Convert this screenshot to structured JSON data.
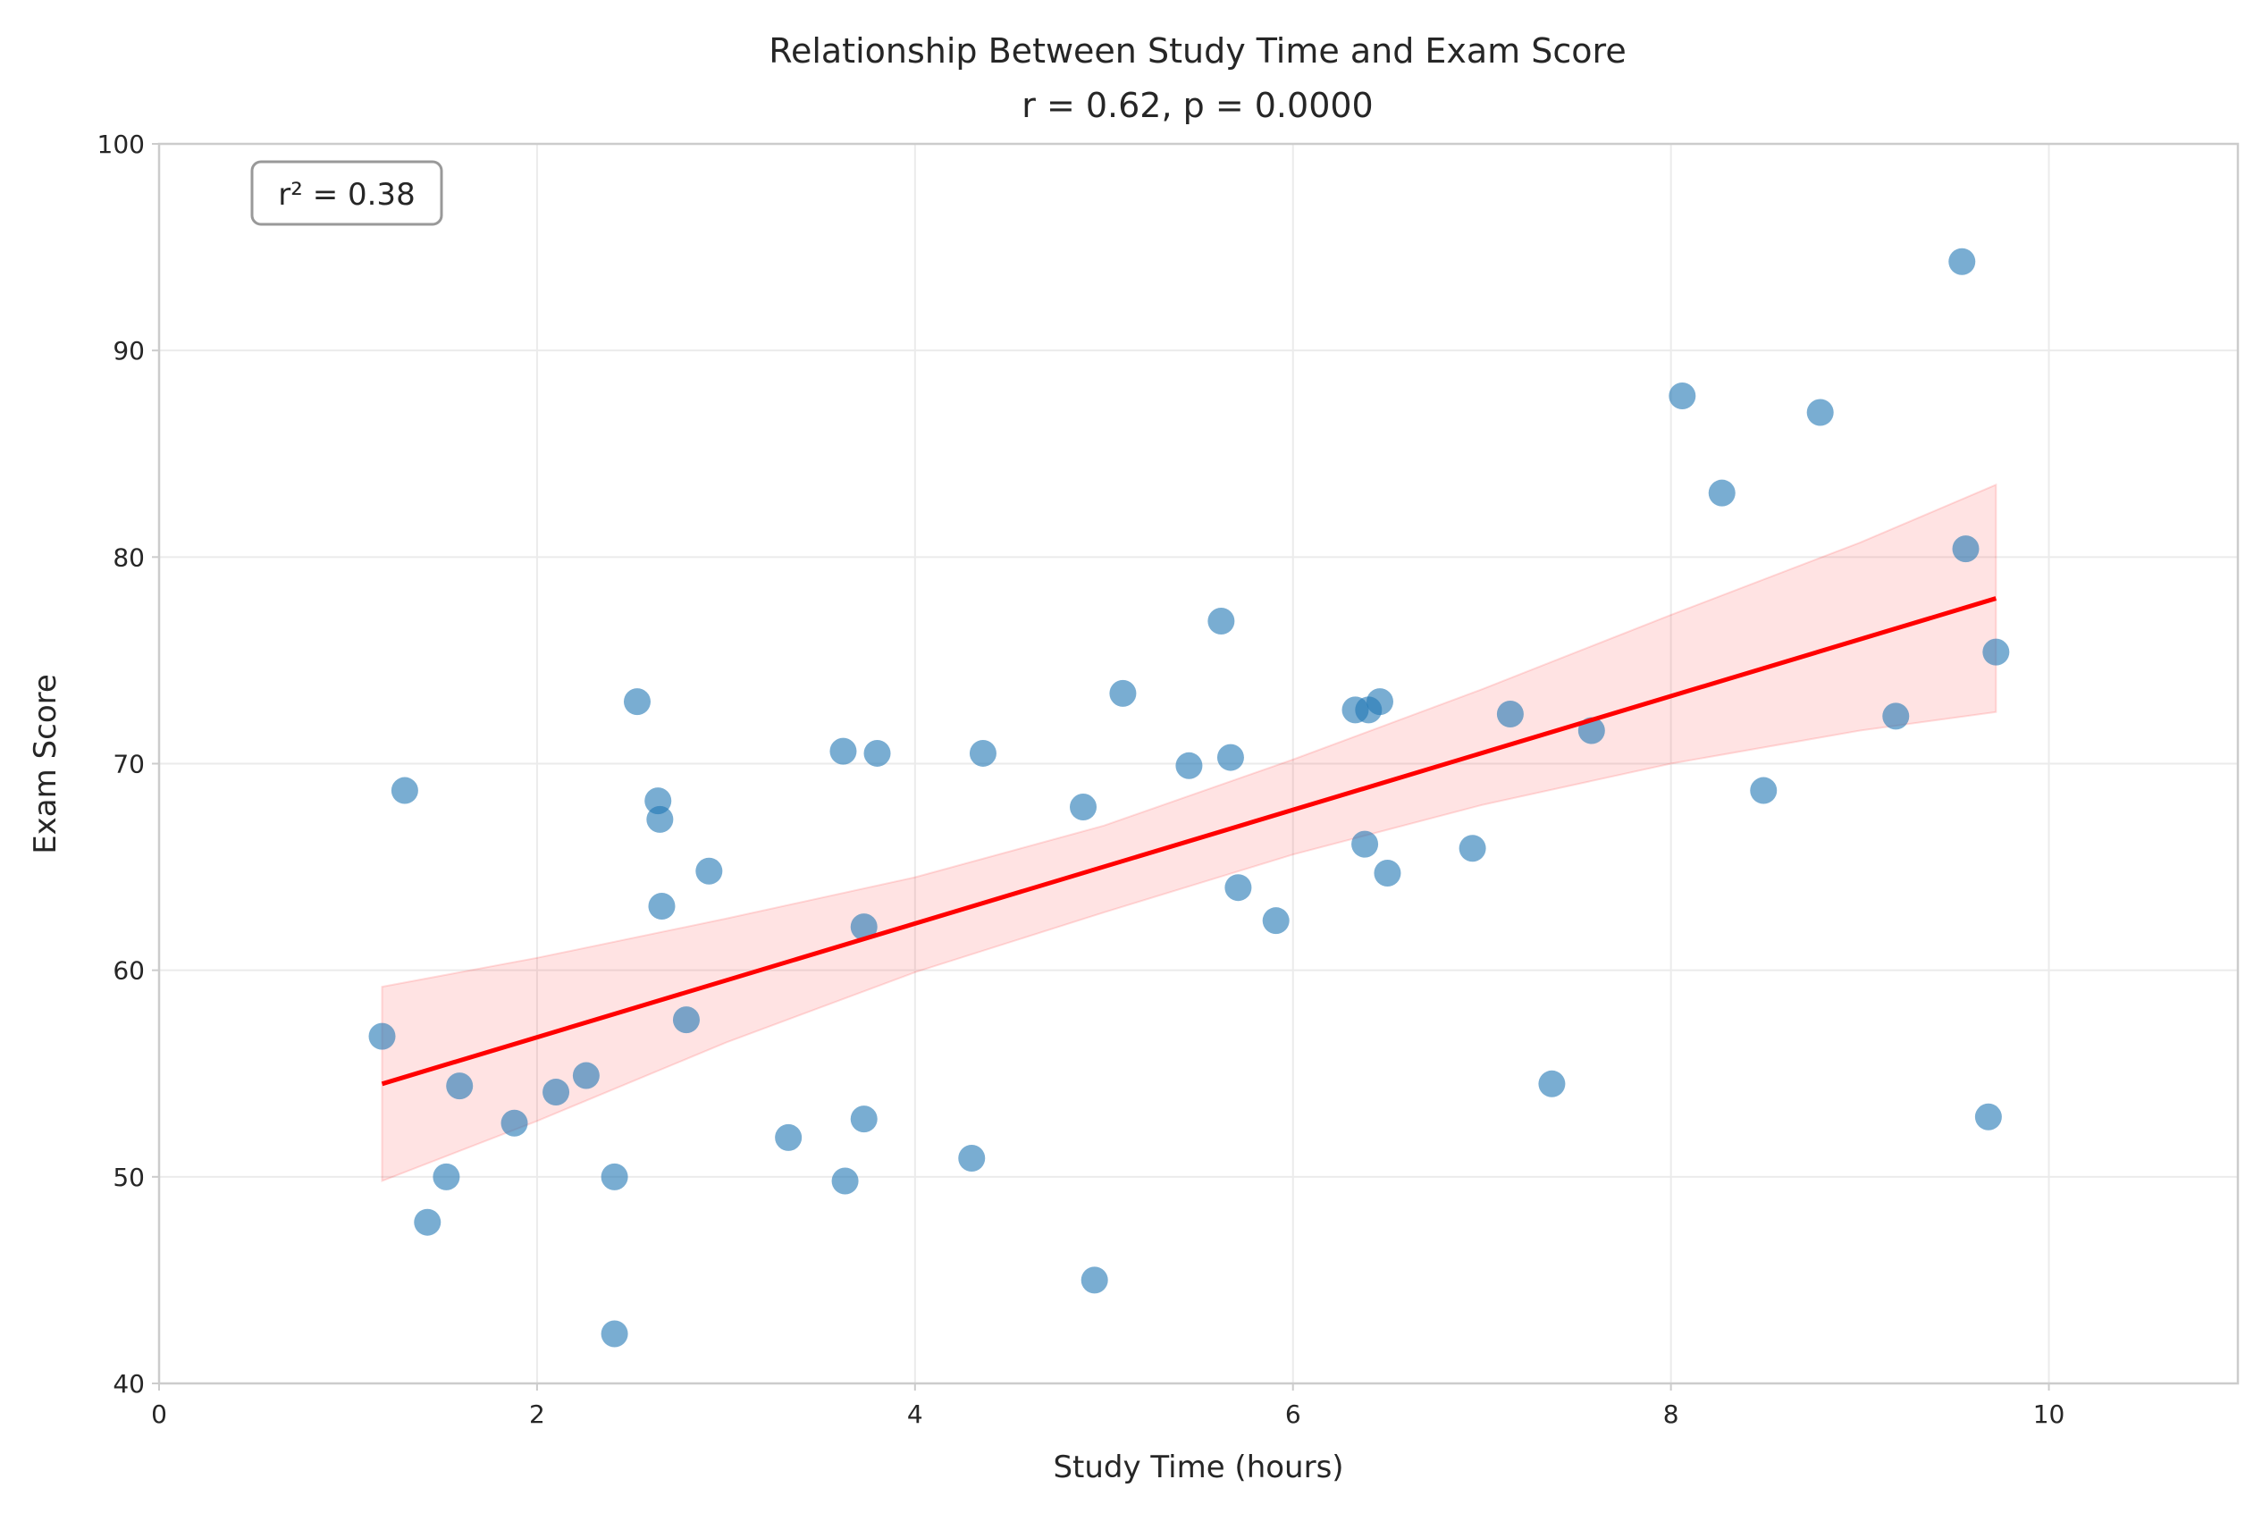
{
  "chart_data": {
    "type": "scatter",
    "title_line1": "Relationship Between Study Time and Exam Score",
    "title_line2": "r = 0.62, p = 0.0000",
    "xlabel": "Study Time (hours)",
    "ylabel": "Exam Score",
    "xlim": [
      0,
      11
    ],
    "ylim": [
      40,
      100
    ],
    "xticks": [
      0,
      2,
      4,
      6,
      8,
      10
    ],
    "yticks": [
      40,
      50,
      60,
      70,
      80,
      90,
      100
    ],
    "grid": true,
    "annotation": "r² = 0.38",
    "colors": {
      "points": "#1f77b4",
      "fit": "#ff0000",
      "band": "#ff0000"
    },
    "points": [
      {
        "x": 1.18,
        "y": 56.8
      },
      {
        "x": 1.3,
        "y": 68.7
      },
      {
        "x": 1.42,
        "y": 47.8
      },
      {
        "x": 1.52,
        "y": 50.0
      },
      {
        "x": 1.59,
        "y": 54.4
      },
      {
        "x": 1.88,
        "y": 52.6
      },
      {
        "x": 2.1,
        "y": 54.1
      },
      {
        "x": 2.26,
        "y": 54.9
      },
      {
        "x": 2.41,
        "y": 50.0
      },
      {
        "x": 2.41,
        "y": 42.4
      },
      {
        "x": 2.53,
        "y": 73.0
      },
      {
        "x": 2.64,
        "y": 68.2
      },
      {
        "x": 2.65,
        "y": 67.3
      },
      {
        "x": 2.66,
        "y": 63.1
      },
      {
        "x": 2.79,
        "y": 57.6
      },
      {
        "x": 2.91,
        "y": 64.8
      },
      {
        "x": 3.33,
        "y": 51.9
      },
      {
        "x": 3.62,
        "y": 70.6
      },
      {
        "x": 3.63,
        "y": 49.8
      },
      {
        "x": 3.73,
        "y": 62.1
      },
      {
        "x": 3.73,
        "y": 52.8
      },
      {
        "x": 3.8,
        "y": 70.5
      },
      {
        "x": 4.3,
        "y": 50.9
      },
      {
        "x": 4.36,
        "y": 70.5
      },
      {
        "x": 4.89,
        "y": 67.9
      },
      {
        "x": 4.95,
        "y": 45.0
      },
      {
        "x": 5.1,
        "y": 73.4
      },
      {
        "x": 5.45,
        "y": 69.9
      },
      {
        "x": 5.62,
        "y": 76.9
      },
      {
        "x": 5.67,
        "y": 70.3
      },
      {
        "x": 5.71,
        "y": 64.0
      },
      {
        "x": 5.91,
        "y": 62.4
      },
      {
        "x": 6.33,
        "y": 72.6
      },
      {
        "x": 6.38,
        "y": 66.1
      },
      {
        "x": 6.4,
        "y": 72.6
      },
      {
        "x": 6.46,
        "y": 73.0
      },
      {
        "x": 6.5,
        "y": 64.7
      },
      {
        "x": 6.95,
        "y": 65.9
      },
      {
        "x": 7.15,
        "y": 72.4
      },
      {
        "x": 7.37,
        "y": 54.5
      },
      {
        "x": 7.58,
        "y": 71.6
      },
      {
        "x": 8.06,
        "y": 87.8
      },
      {
        "x": 8.27,
        "y": 83.1
      },
      {
        "x": 8.49,
        "y": 68.7
      },
      {
        "x": 8.79,
        "y": 87.0
      },
      {
        "x": 9.19,
        "y": 72.3
      },
      {
        "x": 9.54,
        "y": 94.3
      },
      {
        "x": 9.56,
        "y": 80.4
      },
      {
        "x": 9.68,
        "y": 52.9
      },
      {
        "x": 9.72,
        "y": 75.4
      }
    ],
    "fit_line": {
      "x": [
        1.18,
        9.72
      ],
      "y": [
        54.5,
        78.0
      ]
    },
    "confidence_band": {
      "x": [
        1.18,
        2.0,
        3.0,
        4.0,
        5.0,
        6.0,
        7.0,
        8.0,
        9.0,
        9.72
      ],
      "upper": [
        59.2,
        60.6,
        62.5,
        64.5,
        67.0,
        70.2,
        73.6,
        77.2,
        80.7,
        83.5
      ],
      "lower": [
        49.8,
        52.7,
        56.5,
        59.9,
        62.8,
        65.6,
        68.0,
        70.0,
        71.6,
        72.5
      ]
    }
  }
}
